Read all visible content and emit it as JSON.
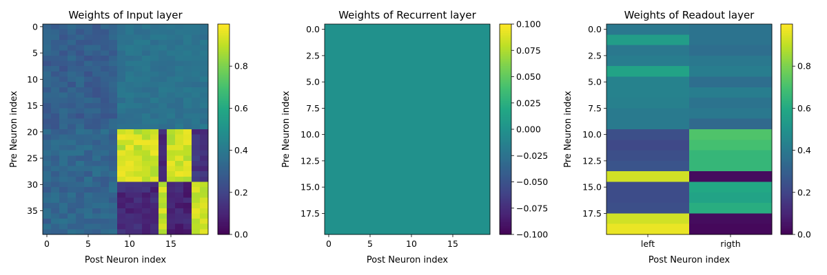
{
  "chart_data": [
    {
      "type": "heatmap",
      "title": "Weights of Input layer",
      "xlabel": "Post Neuron index",
      "ylabel": "Pre Neuron index",
      "rows": 40,
      "cols": 20,
      "x_ticks": [
        0,
        5,
        10,
        15
      ],
      "y_ticks": [
        0,
        5,
        10,
        15,
        20,
        25,
        30,
        35
      ],
      "colorbar": {
        "min": 0.0,
        "max": 1.0,
        "ticks": [
          "0.0",
          "0.2",
          "0.4",
          "0.6",
          "0.8"
        ],
        "tick_values": [
          0.0,
          0.2,
          0.4,
          0.6,
          0.8
        ]
      },
      "colormap": "viridis",
      "blocks": [
        {
          "rows": [
            0,
            19
          ],
          "cols": [
            0,
            8
          ],
          "value": 0.3,
          "jitter": 0.05,
          "note": "left low-valued region"
        },
        {
          "rows": [
            0,
            19
          ],
          "cols": [
            9,
            19
          ],
          "value": 0.38,
          "jitter": 0.03
        },
        {
          "rows": [
            20,
            39
          ],
          "cols": [
            0,
            8
          ],
          "value": 0.33,
          "jitter": 0.05
        },
        {
          "rows": [
            20,
            29
          ],
          "cols": [
            9,
            13
          ],
          "value": 0.92,
          "jitter": 0.06
        },
        {
          "rows": [
            20,
            29
          ],
          "cols": [
            14,
            14
          ],
          "value": 0.12,
          "jitter": 0.04
        },
        {
          "rows": [
            20,
            29
          ],
          "cols": [
            15,
            17
          ],
          "value": 0.92,
          "jitter": 0.06
        },
        {
          "rows": [
            20,
            29
          ],
          "cols": [
            18,
            19
          ],
          "value": 0.15,
          "jitter": 0.05
        },
        {
          "rows": [
            30,
            39
          ],
          "cols": [
            9,
            13
          ],
          "value": 0.12,
          "jitter": 0.05
        },
        {
          "rows": [
            30,
            39
          ],
          "cols": [
            14,
            14
          ],
          "value": 0.92,
          "jitter": 0.05
        },
        {
          "rows": [
            30,
            39
          ],
          "cols": [
            15,
            17
          ],
          "value": 0.1,
          "jitter": 0.05
        },
        {
          "rows": [
            30,
            39
          ],
          "cols": [
            18,
            19
          ],
          "value": 0.93,
          "jitter": 0.05
        }
      ]
    },
    {
      "type": "heatmap",
      "title": "Weights of Recurrent layer",
      "xlabel": "Post Neuron index",
      "ylabel": "Pre Neuron index",
      "rows": 20,
      "cols": 20,
      "x_ticks": [
        0,
        5,
        10,
        15
      ],
      "y_ticks": [
        "0.0",
        "2.5",
        "5.0",
        "7.5",
        "10.0",
        "12.5",
        "15.0",
        "17.5"
      ],
      "y_tick_values": [
        0,
        2.5,
        5,
        7.5,
        10,
        12.5,
        15,
        17.5
      ],
      "colorbar": {
        "min": -0.1,
        "max": 0.1,
        "ticks": [
          "−0.100",
          "−0.075",
          "−0.050",
          "−0.025",
          "0.000",
          "0.025",
          "0.050",
          "0.075",
          "0.100"
        ],
        "tick_values": [
          -0.1,
          -0.075,
          -0.05,
          -0.025,
          0.0,
          0.025,
          0.05,
          0.075,
          0.1
        ]
      },
      "colormap": "viridis",
      "uniform_value": 0.0
    },
    {
      "type": "heatmap",
      "title": "Weights of Readout layer",
      "xlabel": "Post Neuron index",
      "ylabel": "Pre Neuron index",
      "rows": 20,
      "cols": 2,
      "x_ticks": [
        "left",
        "rigth"
      ],
      "y_ticks": [
        "0.0",
        "2.5",
        "5.0",
        "7.5",
        "10.0",
        "12.5",
        "15.0",
        "17.5"
      ],
      "y_tick_values": [
        0,
        2.5,
        5,
        7.5,
        10,
        12.5,
        15,
        17.5
      ],
      "colorbar": {
        "min": 0.0,
        "max": 1.0,
        "ticks": [
          "0.0",
          "0.2",
          "0.4",
          "0.6",
          "0.8"
        ],
        "tick_values": [
          0.0,
          0.2,
          0.4,
          0.6,
          0.8
        ]
      },
      "colormap": "viridis",
      "values": [
        [
          0.4,
          0.38
        ],
        [
          0.55,
          0.38
        ],
        [
          0.4,
          0.36
        ],
        [
          0.42,
          0.4
        ],
        [
          0.58,
          0.42
        ],
        [
          0.44,
          0.36
        ],
        [
          0.44,
          0.42
        ],
        [
          0.43,
          0.38
        ],
        [
          0.41,
          0.4
        ],
        [
          0.41,
          0.34
        ],
        [
          0.24,
          0.72
        ],
        [
          0.22,
          0.7
        ],
        [
          0.24,
          0.66
        ],
        [
          0.26,
          0.66
        ],
        [
          0.93,
          0.03
        ],
        [
          0.23,
          0.6
        ],
        [
          0.23,
          0.58
        ],
        [
          0.24,
          0.62
        ],
        [
          0.93,
          0.03
        ],
        [
          0.97,
          0.02
        ]
      ]
    }
  ]
}
